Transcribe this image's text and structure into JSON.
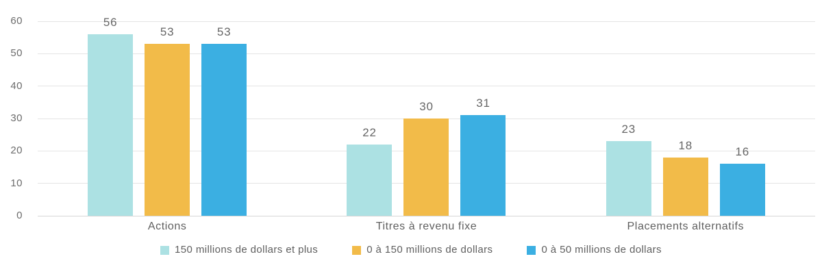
{
  "chart_data": {
    "type": "bar",
    "categories": [
      "Actions",
      "Titres à revenu fixe",
      "Placements alternatifs"
    ],
    "series": [
      {
        "name": "150 millions de dollars et plus",
        "color": "#ace1e3",
        "values": [
          56,
          22,
          23
        ]
      },
      {
        "name": "0 à 150 millions de dollars",
        "color": "#f2bb49",
        "values": [
          53,
          30,
          18
        ]
      },
      {
        "name": "0 à 50 millions de dollars",
        "color": "#3bafe2",
        "values": [
          53,
          31,
          16
        ]
      }
    ],
    "y_ticks": [
      60,
      50,
      40,
      30,
      20,
      10,
      0
    ],
    "ylim": [
      0,
      60
    ],
    "grid": true,
    "value_labels": true,
    "legend_position": "bottom"
  },
  "colors": {
    "grid_line": "#e4e4e4",
    "baseline": "#d6d6d6",
    "tick_text": "#6b6b6b",
    "label_text": "#5e5e5e",
    "background": "#ffffff"
  }
}
